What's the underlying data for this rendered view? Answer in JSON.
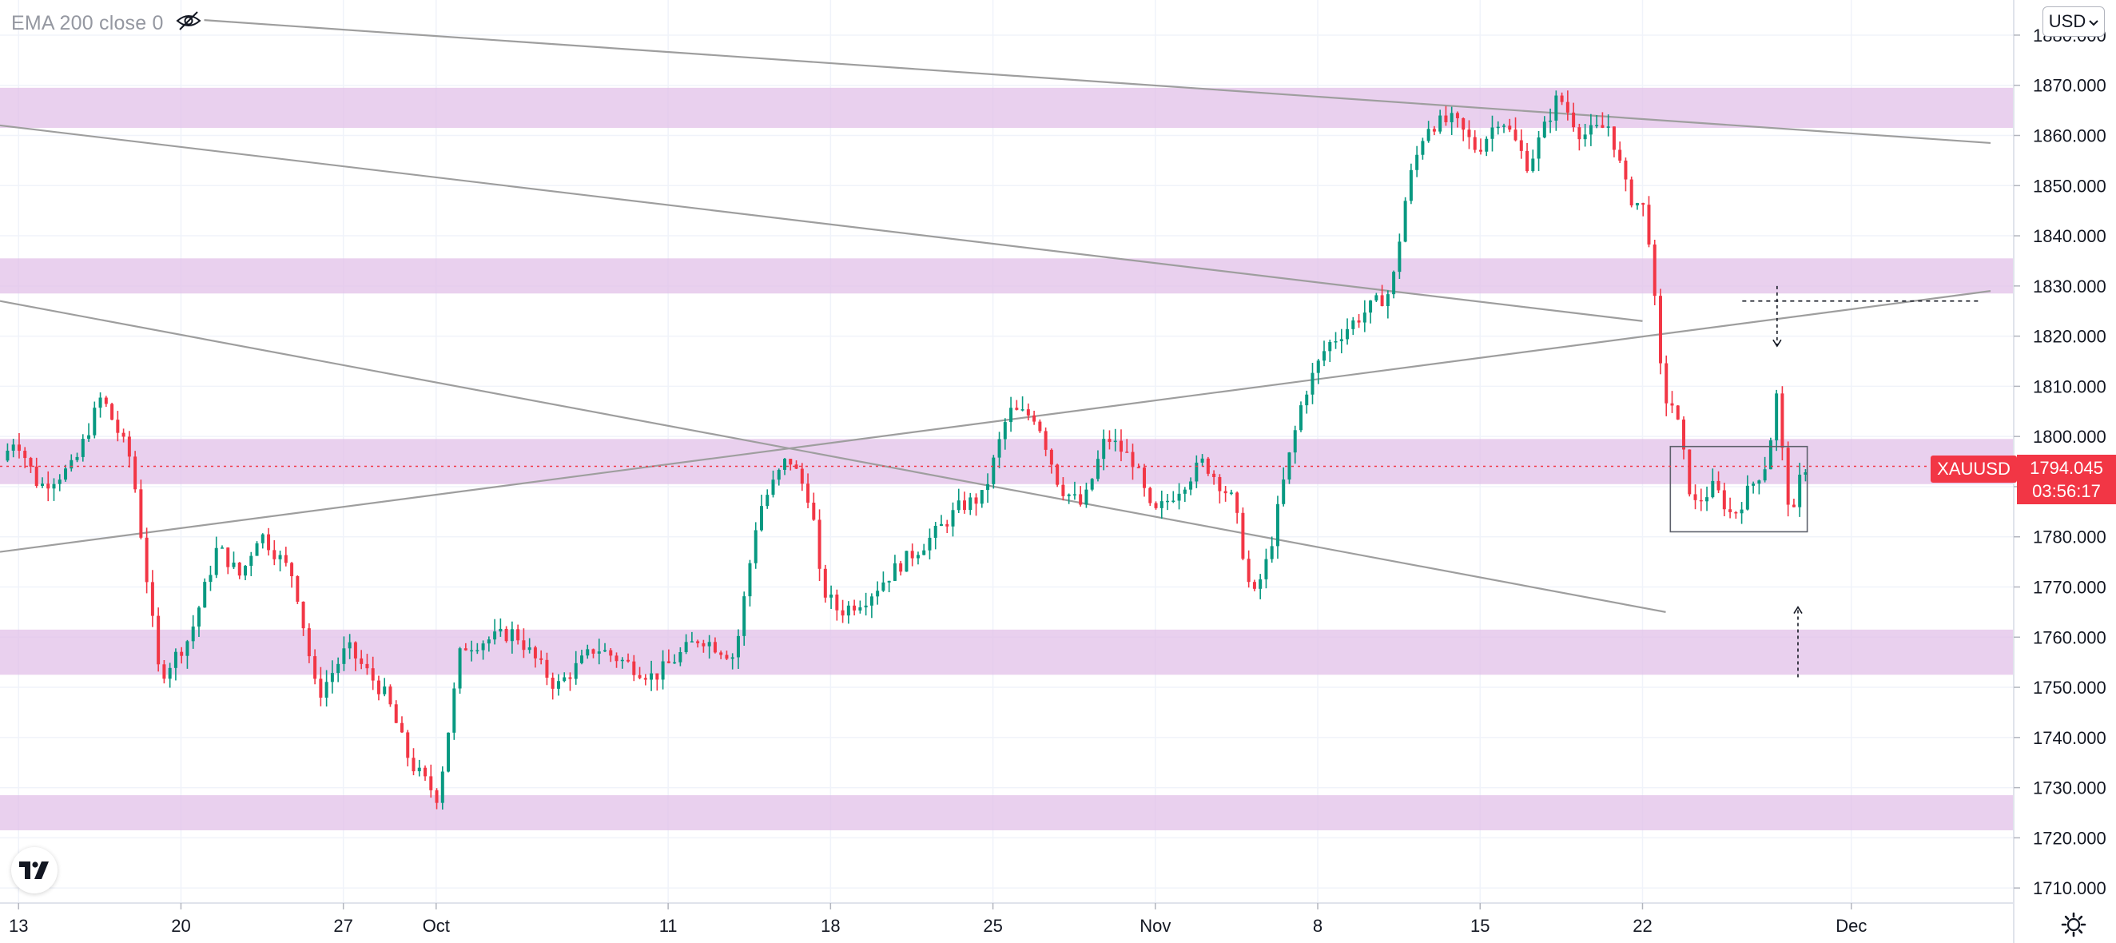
{
  "indicator": {
    "label": "EMA 200 close 0",
    "icon": "eye-crossed-icon"
  },
  "currency": {
    "label": "USD",
    "icon": "chevron-down-icon"
  },
  "symbol": {
    "name": "XAUUSD",
    "last_price": "1794.045",
    "countdown": "03:56:17",
    "color": "#f23645"
  },
  "colors": {
    "up": "#089981",
    "down": "#f23645",
    "zone": "#e1bee7",
    "trendline": "#9e9e9e",
    "grid": "#f0f3fa",
    "text": "#131722"
  },
  "logo": {
    "text": "TV",
    "icon": "tradingview-logo-icon"
  },
  "settings": {
    "icon": "gear-icon"
  },
  "chart_data": {
    "type": "candlestick",
    "symbol": "XAUUSD",
    "y_axis": {
      "labels": [
        "1880.000",
        "1870.000",
        "1860.000",
        "1850.000",
        "1840.000",
        "1830.000",
        "1820.000",
        "1810.000",
        "1800.000",
        "1790.000",
        "1780.000",
        "1770.000",
        "1760.000",
        "1750.000",
        "1740.000",
        "1730.000",
        "1720.000",
        "1710.000"
      ],
      "range": [
        1707,
        1887
      ]
    },
    "x_axis": {
      "labels": [
        {
          "label": "13",
          "day": 0
        },
        {
          "label": "20",
          "day": 7
        },
        {
          "label": "27",
          "day": 14
        },
        {
          "label": "Oct",
          "day": 18
        },
        {
          "label": "11",
          "day": 28
        },
        {
          "label": "18",
          "day": 35
        },
        {
          "label": "25",
          "day": 42
        },
        {
          "label": "Nov",
          "day": 49
        },
        {
          "label": "8",
          "day": 56
        },
        {
          "label": "15",
          "day": 63
        },
        {
          "label": "22",
          "day": 70
        },
        {
          "label": "Dec",
          "day": 79
        }
      ],
      "range": [
        -0.8,
        86
      ]
    },
    "zones": [
      {
        "from": 1861.5,
        "to": 1869.5
      },
      {
        "from": 1828.5,
        "to": 1835.5
      },
      {
        "from": 1790.5,
        "to": 1799.5
      },
      {
        "from": 1752.5,
        "to": 1761.5
      },
      {
        "from": 1721.5,
        "to": 1728.5
      }
    ],
    "trendlines": [
      {
        "from": [
          8,
          1883
        ],
        "to": [
          85,
          1858.5
        ]
      },
      {
        "from": [
          -0.8,
          1862
        ],
        "to": [
          70,
          1823
        ]
      },
      {
        "from": [
          -0.8,
          1827
        ],
        "to": [
          71,
          1765
        ]
      },
      {
        "from": [
          -0.8,
          1777
        ],
        "to": [
          85,
          1829
        ]
      }
    ],
    "consolidation_box": {
      "days": [
        71.2,
        77.1
      ],
      "prices": [
        1781,
        1798
      ]
    },
    "target_line": {
      "days": [
        74.3,
        84.5
      ],
      "price": 1827
    },
    "arrows": [
      {
        "day": 75.8,
        "from": 1830,
        "to": 1818
      },
      {
        "day": 76.7,
        "from": 1752,
        "to": 1766
      }
    ],
    "keypoints": [
      {
        "d": -1,
        "p": 1792
      },
      {
        "d": 0,
        "p": 1800
      },
      {
        "d": 1,
        "p": 1790
      },
      {
        "d": 2.5,
        "p": 1794
      },
      {
        "d": 3.7,
        "p": 1808
      },
      {
        "d": 5,
        "p": 1795
      },
      {
        "d": 6.2,
        "p": 1752
      },
      {
        "d": 7.5,
        "p": 1760
      },
      {
        "d": 8.7,
        "p": 1778
      },
      {
        "d": 9.7,
        "p": 1772
      },
      {
        "d": 10.5,
        "p": 1781
      },
      {
        "d": 12,
        "p": 1772
      },
      {
        "d": 13,
        "p": 1748
      },
      {
        "d": 14.3,
        "p": 1758
      },
      {
        "d": 16,
        "p": 1748
      },
      {
        "d": 17,
        "p": 1735
      },
      {
        "d": 18.2,
        "p": 1728
      },
      {
        "d": 19.2,
        "p": 1758
      },
      {
        "d": 21.5,
        "p": 1761
      },
      {
        "d": 23.3,
        "p": 1750
      },
      {
        "d": 25,
        "p": 1758
      },
      {
        "d": 27.5,
        "p": 1752
      },
      {
        "d": 29.5,
        "p": 1760
      },
      {
        "d": 31,
        "p": 1756
      },
      {
        "d": 32,
        "p": 1785
      },
      {
        "d": 33.3,
        "p": 1796
      },
      {
        "d": 34.3,
        "p": 1787
      },
      {
        "d": 34.7,
        "p": 1770
      },
      {
        "d": 35.5,
        "p": 1765
      },
      {
        "d": 36.7,
        "p": 1768
      },
      {
        "d": 38,
        "p": 1774
      },
      {
        "d": 39.5,
        "p": 1780
      },
      {
        "d": 40.7,
        "p": 1786
      },
      {
        "d": 41.7,
        "p": 1788
      },
      {
        "d": 42.8,
        "p": 1805
      },
      {
        "d": 44,
        "p": 1804
      },
      {
        "d": 45,
        "p": 1790
      },
      {
        "d": 46,
        "p": 1786
      },
      {
        "d": 47,
        "p": 1800
      },
      {
        "d": 48.2,
        "p": 1795
      },
      {
        "d": 49,
        "p": 1784
      },
      {
        "d": 50.2,
        "p": 1790
      },
      {
        "d": 51.2,
        "p": 1795
      },
      {
        "d": 52.5,
        "p": 1787
      },
      {
        "d": 53.3,
        "p": 1767
      },
      {
        "d": 54,
        "p": 1776
      },
      {
        "d": 54.7,
        "p": 1792
      },
      {
        "d": 55.5,
        "p": 1808
      },
      {
        "d": 56.5,
        "p": 1818
      },
      {
        "d": 58.2,
        "p": 1825
      },
      {
        "d": 59.3,
        "p": 1829
      },
      {
        "d": 60,
        "p": 1850
      },
      {
        "d": 60.8,
        "p": 1862
      },
      {
        "d": 62,
        "p": 1863
      },
      {
        "d": 63,
        "p": 1857
      },
      {
        "d": 64,
        "p": 1864
      },
      {
        "d": 65.2,
        "p": 1854
      },
      {
        "d": 66.5,
        "p": 1868
      },
      {
        "d": 67.5,
        "p": 1860
      },
      {
        "d": 68.7,
        "p": 1862
      },
      {
        "d": 69.5,
        "p": 1848
      },
      {
        "d": 70.3,
        "p": 1845
      },
      {
        "d": 71,
        "p": 1808
      },
      {
        "d": 71.5,
        "p": 1806
      },
      {
        "d": 72.3,
        "p": 1786
      },
      {
        "d": 73.2,
        "p": 1790
      },
      {
        "d": 74,
        "p": 1784
      },
      {
        "d": 74.8,
        "p": 1790
      },
      {
        "d": 75.5,
        "p": 1795
      },
      {
        "d": 75.9,
        "p": 1808
      },
      {
        "d": 76.3,
        "p": 1790
      },
      {
        "d": 76.6,
        "p": 1783
      },
      {
        "d": 77,
        "p": 1794
      }
    ],
    "candles_per_day": 4
  }
}
